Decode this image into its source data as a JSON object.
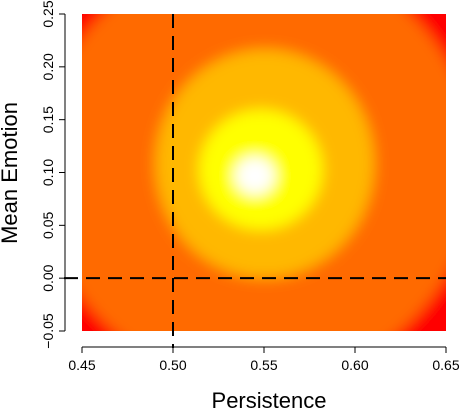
{
  "chart_data": {
    "type": "heatmap",
    "title": "",
    "xlabel": "Persistence",
    "ylabel": "Mean Emotion",
    "xlim": [
      0.45,
      0.65
    ],
    "ylim": [
      -0.05,
      0.25
    ],
    "x_ticks": [
      0.45,
      0.5,
      0.55,
      0.6,
      0.65
    ],
    "x_tick_labels": [
      "0.45",
      "0.50",
      "0.55",
      "0.60",
      "0.65"
    ],
    "y_ticks": [
      -0.05,
      0.0,
      0.05,
      0.1,
      0.15,
      0.2,
      0.25
    ],
    "y_tick_labels": [
      "−0.05",
      "0.00",
      "0.05",
      "0.10",
      "0.15",
      "0.20",
      "0.25"
    ],
    "colormap": "heat",
    "colors": {
      "low": "#ff0000",
      "mid_low": "#ff6a00",
      "mid": "#ffb800",
      "mid_high": "#ffff00",
      "high": "#ffffff"
    },
    "density_peak": {
      "x": 0.545,
      "y": 0.097
    },
    "reference_lines": [
      {
        "orientation": "vertical",
        "value": 0.5,
        "style": "dashed",
        "color": "#000000"
      },
      {
        "orientation": "horizontal",
        "value": 0.0,
        "style": "dashed",
        "color": "#000000"
      }
    ],
    "grid": false,
    "legend": "none"
  }
}
